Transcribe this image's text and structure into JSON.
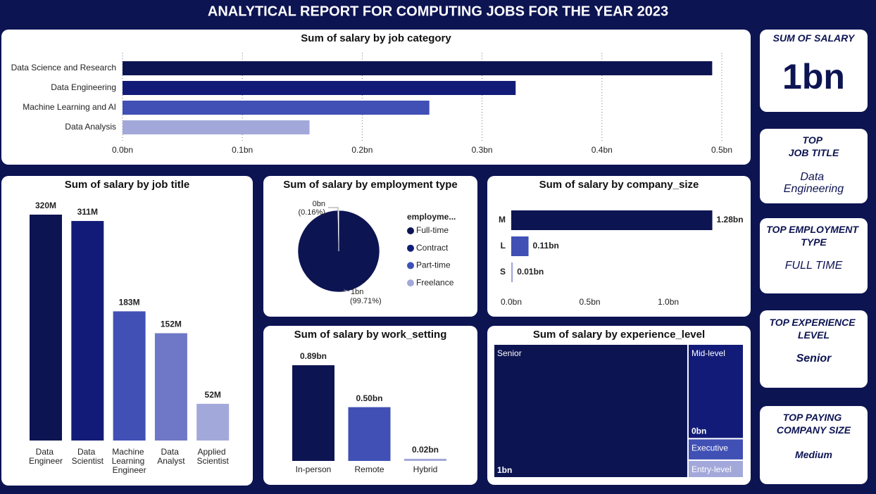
{
  "header": {
    "title": "ANALYTICAL REPORT FOR COMPUTING JOBS FOR THE YEAR 2023"
  },
  "cards": [
    {
      "title": "SUM OF SALARY",
      "value": "1bn"
    },
    {
      "title": "TOP\nJOB TITLE",
      "value": "Data\nEngineering"
    },
    {
      "title": "TOP EMPLOYMENT\nTYPE",
      "value": "FULL TIME"
    },
    {
      "title": "TOP EXPERIENCE\nLEVEL",
      "value": "Senior"
    },
    {
      "title": "TOP PAYING\nCOMPANY SIZE",
      "value": "Medium"
    }
  ],
  "chart_data": [
    {
      "type": "hbar",
      "title": "Sum of salary by job category",
      "categories": [
        "Data Science and Research",
        "Data Engineering",
        "Machine Learning and AI",
        "Data Analysis"
      ],
      "values": [
        0.492,
        0.328,
        0.256,
        0.156
      ],
      "colors": [
        "#0d1452",
        "#121c78",
        "#4050b5",
        "#a3a8da"
      ],
      "xlim": [
        0,
        0.5
      ],
      "xticks": [
        {
          "value": 0,
          "label": "0.0bn"
        },
        {
          "value": 0.1,
          "label": "0.1bn"
        },
        {
          "value": 0.2,
          "label": "0.2bn"
        },
        {
          "value": 0.3,
          "label": "0.3bn"
        },
        {
          "value": 0.4,
          "label": "0.4bn"
        },
        {
          "value": 0.5,
          "label": "0.5bn"
        }
      ],
      "grid": true
    },
    {
      "type": "vbar",
      "title": "Sum of salary by job title",
      "categories": [
        "Data Engineer",
        "Data Scientist",
        "Machine Learning Engineer",
        "Data Analyst",
        "Applied Scientist"
      ],
      "values": [
        320,
        311,
        183,
        152,
        52
      ],
      "value_labels": [
        "320M",
        "311M",
        "183M",
        "152M",
        "52M"
      ],
      "colors": [
        "#0d1452",
        "#121c78",
        "#4050b5",
        "#6e78c6",
        "#a3a8da"
      ]
    },
    {
      "type": "pie",
      "title": "Sum of salary by employment type",
      "legend_title": "employme...",
      "categories": [
        "Full-time",
        "Contract",
        "Part-time",
        "Freelance"
      ],
      "values": [
        99.71,
        0.16,
        0.08,
        0.05
      ],
      "value_labels": [
        "(99.71%)",
        "(0.16%)",
        null,
        null
      ],
      "amount_labels": [
        "1bn",
        "0bn",
        null,
        null
      ],
      "colors": [
        "#0d1452",
        "#121c78",
        "#4050b5",
        "#a3a8da"
      ]
    },
    {
      "type": "hbar",
      "title": "Sum of salary by company_size",
      "categories": [
        "M",
        "L",
        "S"
      ],
      "values": [
        1.28,
        0.11,
        0.01
      ],
      "value_labels": [
        "1.28bn",
        "0.11bn",
        "0.01bn"
      ],
      "colors": [
        "#0d1452",
        "#4050b5",
        "#a3a8da"
      ],
      "xlim": [
        0,
        1.3
      ],
      "xticks": [
        {
          "value": 0,
          "label": "0.0bn"
        },
        {
          "value": 0.5,
          "label": "0.5bn"
        },
        {
          "value": 1.0,
          "label": "1.0bn"
        }
      ],
      "grid": false
    },
    {
      "type": "vbar",
      "title": "Sum of salary by work_setting",
      "categories": [
        "In-person",
        "Remote",
        "Hybrid"
      ],
      "values": [
        0.89,
        0.5,
        0.02
      ],
      "value_labels": [
        "0.89bn",
        "0.50bn",
        "0.02bn"
      ],
      "colors": [
        "#0d1452",
        "#4050b5",
        "#a3a8da"
      ]
    },
    {
      "type": "treemap",
      "title": "Sum of salary by experience_level",
      "categories": [
        "Senior",
        "Mid-level",
        "Executive",
        "Entry-level"
      ],
      "values": [
        0.96,
        0.195,
        0.045,
        0.037
      ],
      "value_labels": [
        "1bn",
        "0bn",
        null,
        null
      ],
      "colors": [
        "#0d1452",
        "#121c78",
        "#4050b5",
        "#a3a8da"
      ]
    }
  ]
}
